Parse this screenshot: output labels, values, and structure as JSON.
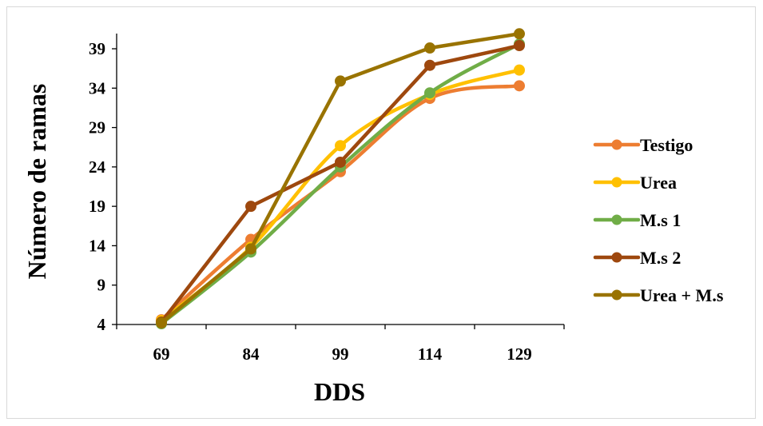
{
  "chart_data": {
    "type": "line",
    "title": "",
    "xlabel": "DDS",
    "ylabel": "Número de ramas",
    "categories": [
      "69",
      "84",
      "99",
      "114",
      "129"
    ],
    "y_ticks": [
      "4",
      "9",
      "14",
      "19",
      "24",
      "29",
      "34",
      "39"
    ],
    "ylim": [
      4,
      41.5
    ],
    "grid": false,
    "legend_position": "right",
    "series": [
      {
        "name": "Testigo",
        "color": "#ED7D31",
        "smooth": true,
        "values": [
          4.6,
          14.8,
          23.4,
          32.7,
          34.3
        ]
      },
      {
        "name": "Urea",
        "color": "#FFC000",
        "smooth": true,
        "values": [
          4.5,
          13.8,
          26.7,
          33.2,
          36.3
        ]
      },
      {
        "name": "M.s 1",
        "color": "#70AD47",
        "smooth": true,
        "values": [
          4.1,
          13.2,
          24.0,
          33.4,
          39.6
        ]
      },
      {
        "name": "M.s 2",
        "color": "#9E480E",
        "smooth": false,
        "values": [
          4.3,
          19.0,
          24.6,
          36.9,
          39.4
        ]
      },
      {
        "name": "Urea + M.s",
        "color": "#997300",
        "smooth": false,
        "values": [
          4.2,
          13.6,
          34.9,
          39.1,
          40.9
        ]
      }
    ]
  }
}
